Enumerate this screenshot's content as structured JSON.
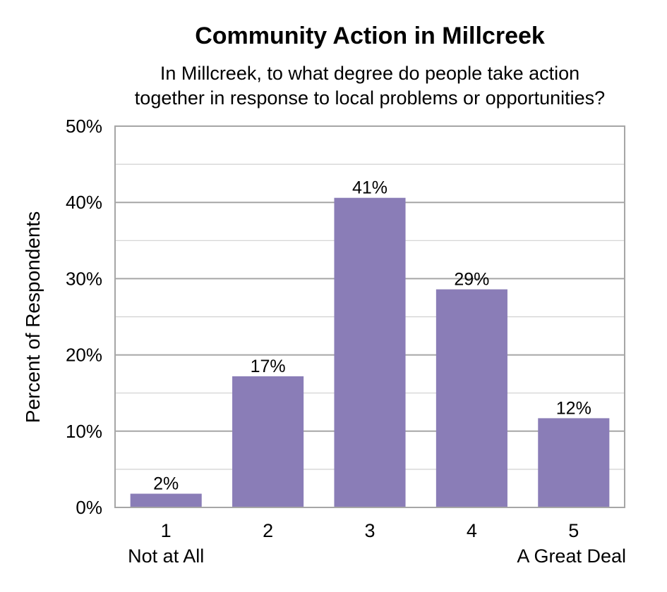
{
  "chart_data": {
    "type": "bar",
    "title": "Community Action in Millcreek",
    "subtitle_lines": [
      "In Millcreek, to what degree do people take action",
      "together in response to local problems or opportunities?"
    ],
    "ylabel": "Percent of Respondents",
    "xlabel": "",
    "categories": [
      "1",
      "2",
      "3",
      "4",
      "5"
    ],
    "category_sublabels": [
      "Not at All",
      "",
      "",
      "",
      "A Great Deal"
    ],
    "values": [
      1.8,
      17.2,
      40.6,
      28.6,
      11.7
    ],
    "data_labels": [
      "2%",
      "17%",
      "41%",
      "29%",
      "12%"
    ],
    "ylim": [
      0,
      50
    ],
    "yticks": [
      0,
      10,
      20,
      30,
      40,
      50
    ],
    "ytick_labels": [
      "0%",
      "10%",
      "20%",
      "30%",
      "40%",
      "50%"
    ],
    "grid": true,
    "bar_color": "#8a7db7",
    "legend": false
  }
}
